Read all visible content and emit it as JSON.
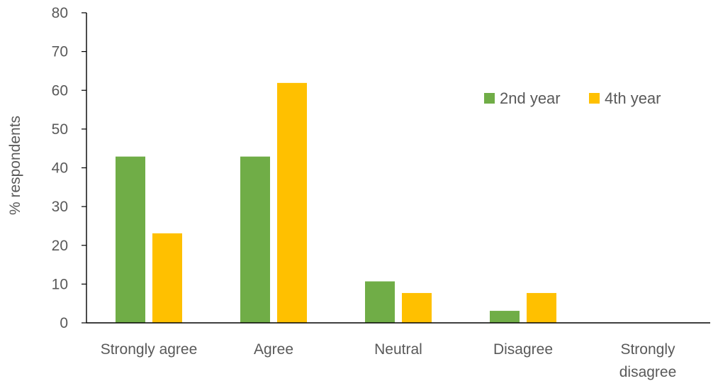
{
  "chart_data": {
    "type": "bar",
    "categories": [
      "Strongly agree",
      "Agree",
      "Neutral",
      "Disagree",
      "Strongly disagree"
    ],
    "category_lines": [
      [
        "Strongly agree"
      ],
      [
        "Agree"
      ],
      [
        "Neutral"
      ],
      [
        "Disagree"
      ],
      [
        "Strongly",
        "disagree"
      ]
    ],
    "series": [
      {
        "name": "2nd year",
        "color": "#70ad47",
        "values": [
          42.9,
          42.9,
          10.7,
          3.1,
          0
        ]
      },
      {
        "name": "4th year",
        "color": "#ffc000",
        "values": [
          23.1,
          61.9,
          7.7,
          7.7,
          0
        ]
      }
    ],
    "ylabel": "% respondents",
    "xlabel": "",
    "ylim": [
      0,
      80
    ],
    "yticks": [
      0,
      10,
      20,
      30,
      40,
      50,
      60,
      70,
      80
    ],
    "grid": false,
    "legend_position": "top-right"
  }
}
